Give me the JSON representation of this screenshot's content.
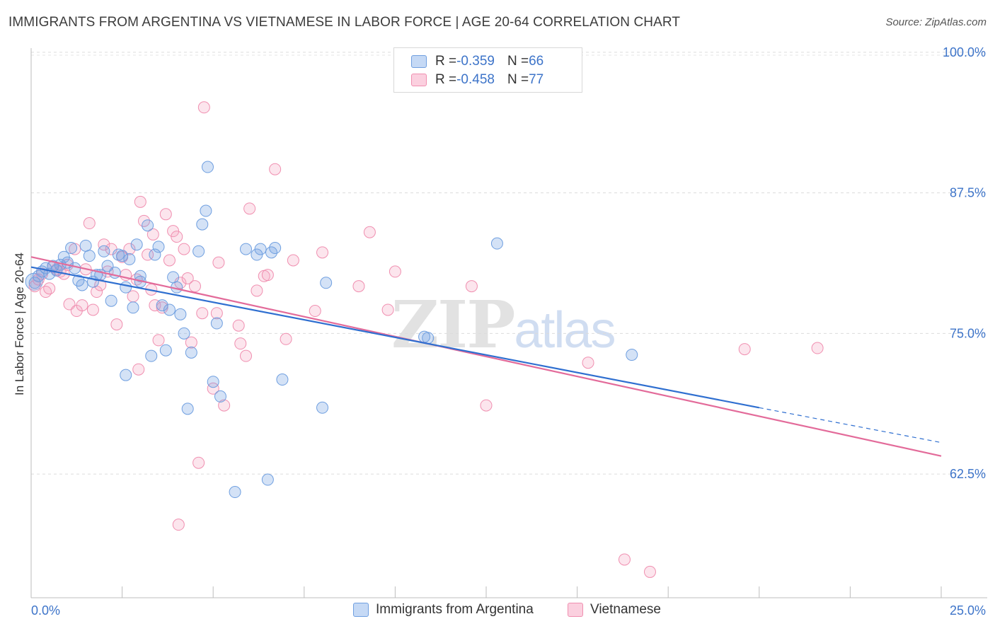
{
  "title": "IMMIGRANTS FROM ARGENTINA VS VIETNAMESE IN LABOR FORCE | AGE 20-64 CORRELATION CHART",
  "source": "Source: ZipAtlas.com",
  "watermark": {
    "zip": "ZIP",
    "atlas": "atlas"
  },
  "legend_top": {
    "rows": [
      {
        "r_label": "R = ",
        "r_value": "-0.359",
        "n_label": "N = ",
        "n_value": "66"
      },
      {
        "r_label": "R = ",
        "r_value": "-0.458",
        "n_label": "N = ",
        "n_value": "77"
      }
    ]
  },
  "legend_bottom": [
    "Immigrants from Argentina",
    "Vietnamese"
  ],
  "chart_data": {
    "type": "scatter",
    "title": "IMMIGRANTS FROM ARGENTINA VS VIETNAMESE IN LABOR FORCE | AGE 20-64 CORRELATION CHART",
    "xlabel": "",
    "ylabel": "In Labor Force | Age 20-64",
    "xlim": [
      0,
      25
    ],
    "ylim": [
      51.5,
      101.5
    ],
    "x_tick_labels": [
      "0.0%",
      "25.0%"
    ],
    "y_ticks": [
      62.5,
      75.0,
      87.5,
      100.0
    ],
    "y_tick_labels": [
      "62.5%",
      "75.0%",
      "87.5%",
      "100.0%"
    ],
    "grid": true,
    "legend_position": "top-center",
    "colors": {
      "argentina": "#6f9fe0",
      "vietnamese": "#f08fb0",
      "argentina_line": "#2f6fd0",
      "vietnamese_line": "#e36b9a",
      "tick_label": "#3d74c9"
    },
    "series": [
      {
        "name": "Immigrants from Argentina",
        "R": -0.359,
        "N": 66,
        "trend": {
          "x0": 0.0,
          "y0": 80.9,
          "x1": 20.0,
          "y1": 68.4,
          "dash_to_x": 25.0,
          "dash_to_y": 65.3
        },
        "points": [
          [
            0.1,
            79.5
          ],
          [
            0.2,
            80.1
          ],
          [
            0.3,
            80.5
          ],
          [
            0.4,
            80.8
          ],
          [
            0.5,
            80.3
          ],
          [
            0.6,
            81.0
          ],
          [
            0.7,
            80.6
          ],
          [
            0.8,
            81.1
          ],
          [
            0.9,
            81.8
          ],
          [
            1.0,
            81.3
          ],
          [
            1.1,
            82.6
          ],
          [
            1.2,
            80.8
          ],
          [
            1.3,
            79.7
          ],
          [
            1.4,
            79.3
          ],
          [
            1.5,
            82.8
          ],
          [
            1.6,
            81.9
          ],
          [
            1.7,
            79.6
          ],
          [
            1.8,
            80.2
          ],
          [
            1.9,
            80.2
          ],
          [
            2.0,
            82.3
          ],
          [
            2.1,
            81.0
          ],
          [
            2.2,
            77.9
          ],
          [
            2.3,
            80.4
          ],
          [
            2.4,
            82.0
          ],
          [
            2.5,
            81.9
          ],
          [
            2.6,
            79.1
          ],
          [
            2.6,
            71.3
          ],
          [
            2.7,
            81.6
          ],
          [
            2.8,
            77.3
          ],
          [
            2.9,
            82.9
          ],
          [
            3.0,
            79.6
          ],
          [
            3.0,
            80.1
          ],
          [
            3.2,
            84.6
          ],
          [
            3.3,
            73.0
          ],
          [
            3.4,
            82.0
          ],
          [
            3.5,
            82.7
          ],
          [
            3.6,
            77.5
          ],
          [
            3.7,
            73.5
          ],
          [
            3.8,
            77.1
          ],
          [
            3.9,
            80.0
          ],
          [
            4.0,
            79.1
          ],
          [
            4.1,
            76.7
          ],
          [
            4.2,
            75.0
          ],
          [
            4.3,
            68.3
          ],
          [
            4.4,
            73.3
          ],
          [
            4.6,
            82.3
          ],
          [
            4.7,
            84.7
          ],
          [
            4.8,
            85.9
          ],
          [
            4.85,
            89.8
          ],
          [
            5.0,
            70.7
          ],
          [
            5.1,
            75.9
          ],
          [
            5.2,
            69.4
          ],
          [
            5.6,
            60.9
          ],
          [
            5.9,
            82.5
          ],
          [
            6.2,
            82.0
          ],
          [
            6.3,
            82.5
          ],
          [
            6.5,
            62.0
          ],
          [
            6.6,
            82.2
          ],
          [
            6.7,
            82.6
          ],
          [
            6.9,
            70.9
          ],
          [
            8.0,
            68.4
          ],
          [
            8.1,
            79.5
          ],
          [
            10.8,
            74.7
          ],
          [
            10.9,
            74.6
          ],
          [
            12.8,
            83.0
          ],
          [
            16.5,
            73.1
          ]
        ]
      },
      {
        "name": "Vietnamese",
        "R": -0.458,
        "N": 77,
        "trend": {
          "x0": 0.0,
          "y0": 81.8,
          "x1": 25.0,
          "y1": 64.1
        },
        "points": [
          [
            0.1,
            79.2
          ],
          [
            0.2,
            79.8
          ],
          [
            0.3,
            80.3
          ],
          [
            0.4,
            78.7
          ],
          [
            0.5,
            79.0
          ],
          [
            0.6,
            80.9
          ],
          [
            0.7,
            80.7
          ],
          [
            0.8,
            80.5
          ],
          [
            0.9,
            80.3
          ],
          [
            1.0,
            81.1
          ],
          [
            1.05,
            77.6
          ],
          [
            1.2,
            82.5
          ],
          [
            1.25,
            77.0
          ],
          [
            1.4,
            77.5
          ],
          [
            1.5,
            80.7
          ],
          [
            1.6,
            84.8
          ],
          [
            1.7,
            77.1
          ],
          [
            1.8,
            78.7
          ],
          [
            1.9,
            79.3
          ],
          [
            2.0,
            82.9
          ],
          [
            2.1,
            80.5
          ],
          [
            2.2,
            82.5
          ],
          [
            2.35,
            75.8
          ],
          [
            2.5,
            81.8
          ],
          [
            2.6,
            80.2
          ],
          [
            2.7,
            82.5
          ],
          [
            2.8,
            78.3
          ],
          [
            2.9,
            79.8
          ],
          [
            2.95,
            71.8
          ],
          [
            3.0,
            86.7
          ],
          [
            3.1,
            85.0
          ],
          [
            3.2,
            82.0
          ],
          [
            3.3,
            78.9
          ],
          [
            3.35,
            83.8
          ],
          [
            3.4,
            77.5
          ],
          [
            3.5,
            74.4
          ],
          [
            3.6,
            77.3
          ],
          [
            3.7,
            85.6
          ],
          [
            3.8,
            81.5
          ],
          [
            3.9,
            84.1
          ],
          [
            4.0,
            83.6
          ],
          [
            4.05,
            58.0
          ],
          [
            4.1,
            79.5
          ],
          [
            4.2,
            82.5
          ],
          [
            4.3,
            79.9
          ],
          [
            4.4,
            74.2
          ],
          [
            4.5,
            79.2
          ],
          [
            4.6,
            63.5
          ],
          [
            4.7,
            76.8
          ],
          [
            4.75,
            95.1
          ],
          [
            5.0,
            70.1
          ],
          [
            5.1,
            76.8
          ],
          [
            5.15,
            81.3
          ],
          [
            5.3,
            68.6
          ],
          [
            5.7,
            75.7
          ],
          [
            5.75,
            74.1
          ],
          [
            5.9,
            73.0
          ],
          [
            6.0,
            86.1
          ],
          [
            6.2,
            78.8
          ],
          [
            6.4,
            80.1
          ],
          [
            6.5,
            80.2
          ],
          [
            6.7,
            89.6
          ],
          [
            7.0,
            74.5
          ],
          [
            7.2,
            81.5
          ],
          [
            7.8,
            77.0
          ],
          [
            8.0,
            82.2
          ],
          [
            9.0,
            79.2
          ],
          [
            9.3,
            84.0
          ],
          [
            9.8,
            77.1
          ],
          [
            10.0,
            80.5
          ],
          [
            12.1,
            79.2
          ],
          [
            12.5,
            68.6
          ],
          [
            15.3,
            72.4
          ],
          [
            16.3,
            54.9
          ],
          [
            17.0,
            53.8
          ],
          [
            19.6,
            73.6
          ],
          [
            21.6,
            73.7
          ]
        ]
      }
    ]
  }
}
